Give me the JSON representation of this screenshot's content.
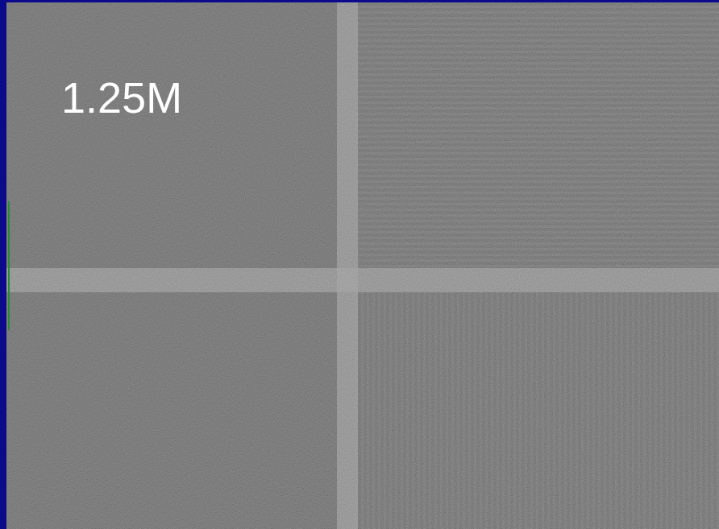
{
  "image": {
    "label": "1.25M"
  }
}
